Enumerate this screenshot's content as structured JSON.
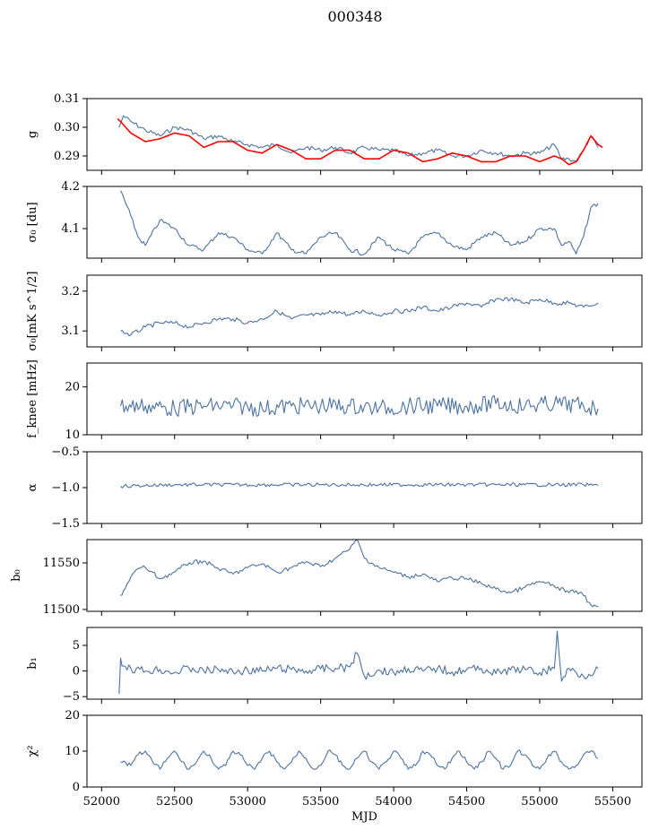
{
  "figure": {
    "title": "000348"
  },
  "chart_data": [
    {
      "type": "line",
      "id": "g",
      "ylabel": "g",
      "ylim": [
        0.285,
        0.31
      ],
      "yticks": [
        0.29,
        0.3,
        0.31
      ],
      "ytick_labels": [
        "0.29",
        "0.30",
        "0.31"
      ],
      "xlim": [
        51900,
        55700
      ],
      "series": [
        {
          "role": "data",
          "color": "#4c72a0",
          "x": [
            52120,
            52150,
            52200,
            52300,
            52400,
            52500,
            52600,
            52700,
            52800,
            52900,
            53000,
            53100,
            53200,
            53300,
            53400,
            53500,
            53600,
            53700,
            53800,
            53900,
            54000,
            54100,
            54200,
            54300,
            54400,
            54500,
            54600,
            54700,
            54800,
            54900,
            55000,
            55100,
            55150,
            55200,
            55250,
            55300,
            55350,
            55400
          ],
          "y": [
            0.3,
            0.304,
            0.302,
            0.299,
            0.297,
            0.3,
            0.299,
            0.296,
            0.297,
            0.295,
            0.294,
            0.293,
            0.294,
            0.291,
            0.293,
            0.292,
            0.293,
            0.291,
            0.293,
            0.292,
            0.292,
            0.29,
            0.291,
            0.292,
            0.29,
            0.29,
            0.292,
            0.291,
            0.29,
            0.291,
            0.291,
            0.294,
            0.289,
            0.289,
            0.288,
            0.292,
            0.297,
            0.293
          ]
        },
        {
          "role": "model",
          "color": "#ff0000",
          "x": [
            52110,
            52130,
            52200,
            52300,
            52400,
            52500,
            52600,
            52700,
            52800,
            52900,
            53000,
            53100,
            53200,
            53300,
            53400,
            53500,
            53600,
            53700,
            53800,
            53900,
            54000,
            54100,
            54200,
            54300,
            54400,
            54500,
            54600,
            54700,
            54800,
            54900,
            55000,
            55100,
            55150,
            55200,
            55250,
            55300,
            55350,
            55400,
            55430
          ],
          "y": [
            0.303,
            0.302,
            0.298,
            0.295,
            0.296,
            0.298,
            0.297,
            0.293,
            0.295,
            0.295,
            0.292,
            0.291,
            0.294,
            0.292,
            0.289,
            0.289,
            0.292,
            0.292,
            0.289,
            0.289,
            0.292,
            0.291,
            0.288,
            0.289,
            0.291,
            0.29,
            0.288,
            0.288,
            0.29,
            0.29,
            0.288,
            0.29,
            0.289,
            0.287,
            0.288,
            0.292,
            0.297,
            0.294,
            0.293
          ]
        }
      ]
    },
    {
      "type": "line",
      "id": "sigma0-du",
      "ylabel": "σ₀ [du]",
      "ylim": [
        4.03,
        4.2
      ],
      "yticks": [
        4.1,
        4.2
      ],
      "ytick_labels": [
        "4.1",
        "4.2"
      ],
      "xlim": [
        51900,
        55700
      ],
      "series": [
        {
          "color": "#4c72a0",
          "x": [
            52130,
            52200,
            52250,
            52300,
            52400,
            52500,
            52600,
            52700,
            52800,
            52900,
            53000,
            53100,
            53200,
            53300,
            53400,
            53500,
            53600,
            53700,
            53800,
            53900,
            54000,
            54100,
            54200,
            54300,
            54400,
            54500,
            54600,
            54700,
            54800,
            54900,
            55000,
            55100,
            55150,
            55200,
            55250,
            55300,
            55350,
            55400
          ],
          "y": [
            4.19,
            4.13,
            4.08,
            4.06,
            4.12,
            4.1,
            4.06,
            4.05,
            4.09,
            4.08,
            4.05,
            4.04,
            4.09,
            4.05,
            4.04,
            4.08,
            4.09,
            4.05,
            4.04,
            4.08,
            4.05,
            4.04,
            4.08,
            4.09,
            4.06,
            4.05,
            4.08,
            4.09,
            4.06,
            4.07,
            4.1,
            4.1,
            4.06,
            4.07,
            4.04,
            4.08,
            4.15,
            4.16
          ]
        }
      ]
    },
    {
      "type": "line",
      "id": "sigma0-mk",
      "ylabel": "σ₀[mK s^1/2]",
      "ylim": [
        3.06,
        3.24
      ],
      "yticks": [
        3.1,
        3.2
      ],
      "ytick_labels": [
        "3.1",
        "3.2"
      ],
      "xlim": [
        51900,
        55700
      ],
      "series": [
        {
          "color": "#4c72a0",
          "x": [
            52130,
            52200,
            52300,
            52400,
            52500,
            52600,
            52700,
            52800,
            52900,
            53000,
            53100,
            53200,
            53300,
            53400,
            53500,
            53600,
            53700,
            53800,
            53900,
            54000,
            54100,
            54200,
            54300,
            54400,
            54500,
            54600,
            54700,
            54800,
            54900,
            55000,
            55100,
            55200,
            55300,
            55400
          ],
          "y": [
            3.1,
            3.09,
            3.11,
            3.12,
            3.12,
            3.11,
            3.12,
            3.13,
            3.13,
            3.12,
            3.13,
            3.15,
            3.13,
            3.14,
            3.14,
            3.15,
            3.14,
            3.15,
            3.14,
            3.15,
            3.15,
            3.16,
            3.15,
            3.16,
            3.17,
            3.16,
            3.18,
            3.18,
            3.17,
            3.18,
            3.17,
            3.17,
            3.16,
            3.17
          ]
        }
      ]
    },
    {
      "type": "line",
      "id": "fknee",
      "ylabel": "f_knee [mHz]",
      "ylim": [
        10,
        25
      ],
      "yticks": [
        10,
        20
      ],
      "ytick_labels": [
        "10",
        "20"
      ],
      "xlim": [
        51900,
        55700
      ],
      "series": [
        {
          "color": "#4c72a0",
          "x": [
            52130,
            52300,
            52500,
            52700,
            52900,
            53100,
            53300,
            53500,
            53700,
            53900,
            54100,
            54300,
            54500,
            54700,
            54900,
            55100,
            55300,
            55400
          ],
          "y": [
            16,
            16,
            15.5,
            16,
            16,
            15.5,
            16,
            16,
            16,
            15.5,
            16,
            16,
            16,
            16.5,
            16,
            16.5,
            16,
            15.5
          ]
        }
      ]
    },
    {
      "type": "line",
      "id": "alpha",
      "ylabel": "α",
      "ylim": [
        -1.5,
        -0.5
      ],
      "yticks": [
        -1.5,
        -1.0,
        -0.5
      ],
      "ytick_labels": [
        "−1.5",
        "−1.0",
        "−0.5"
      ],
      "xlim": [
        51900,
        55700
      ],
      "series": [
        {
          "color": "#4c72a0",
          "x": [
            52130,
            52300,
            52500,
            52700,
            52900,
            53100,
            53300,
            53500,
            53700,
            53900,
            54100,
            54300,
            54500,
            54700,
            54900,
            55100,
            55300,
            55400
          ],
          "y": [
            -0.98,
            -0.97,
            -0.96,
            -0.96,
            -0.96,
            -0.96,
            -0.96,
            -0.96,
            -0.96,
            -0.96,
            -0.96,
            -0.96,
            -0.96,
            -0.96,
            -0.96,
            -0.96,
            -0.96,
            -0.97
          ]
        }
      ]
    },
    {
      "type": "line",
      "id": "b0",
      "ylabel": "b₀",
      "ylim": [
        11498,
        11575
      ],
      "yticks": [
        11500,
        11550
      ],
      "ytick_labels": [
        "11500",
        "11550"
      ],
      "xlim": [
        51900,
        55700
      ],
      "series": [
        {
          "color": "#4c72a0",
          "x": [
            52130,
            52150,
            52200,
            52250,
            52300,
            52400,
            52500,
            52600,
            52700,
            52800,
            52900,
            53000,
            53100,
            53200,
            53300,
            53400,
            53500,
            53600,
            53700,
            53750,
            53800,
            53900,
            54000,
            54100,
            54200,
            54300,
            54400,
            54500,
            54600,
            54700,
            54800,
            54900,
            55000,
            55100,
            55200,
            55250,
            55300,
            55350,
            55400
          ],
          "y": [
            11515,
            11520,
            11535,
            11544,
            11545,
            11533,
            11540,
            11550,
            11552,
            11544,
            11538,
            11545,
            11549,
            11540,
            11545,
            11551,
            11546,
            11555,
            11565,
            11575,
            11555,
            11545,
            11540,
            11535,
            11538,
            11530,
            11534,
            11533,
            11528,
            11522,
            11518,
            11524,
            11530,
            11525,
            11518,
            11520,
            11515,
            11505,
            11503
          ]
        }
      ]
    },
    {
      "type": "line",
      "id": "b1",
      "ylabel": "b₁",
      "ylim": [
        -5.5,
        8.5
      ],
      "yticks": [
        -5,
        0,
        5
      ],
      "ytick_labels": [
        "−5",
        "0",
        "5"
      ],
      "xlim": [
        51900,
        55700
      ],
      "series": [
        {
          "color": "#4c72a0",
          "x": [
            52120,
            52130,
            52150,
            52200,
            52300,
            52400,
            52500,
            52600,
            52700,
            52800,
            52900,
            53000,
            53100,
            53200,
            53300,
            53400,
            53500,
            53600,
            53700,
            53750,
            53800,
            53900,
            54000,
            54100,
            54200,
            54300,
            54400,
            54500,
            54600,
            54700,
            54800,
            54900,
            55000,
            55100,
            55120,
            55150,
            55200,
            55300,
            55400
          ],
          "y": [
            -4.5,
            2.5,
            1,
            0.5,
            0,
            0.3,
            -0.3,
            0.5,
            0,
            0.3,
            -0.2,
            0.2,
            0,
            0.5,
            0.3,
            0,
            0.4,
            0.5,
            0.8,
            3.5,
            -1,
            0.2,
            -0.3,
            0.5,
            0,
            0.5,
            -0.2,
            0.3,
            0.5,
            -0.5,
            0.2,
            0.3,
            -0.3,
            0.5,
            7.8,
            -2,
            0.5,
            -1,
            0.5
          ]
        }
      ]
    },
    {
      "type": "line",
      "id": "chi2",
      "ylabel": "χ²",
      "xlabel": "MJD",
      "ylim": [
        0,
        20
      ],
      "yticks": [
        0,
        10,
        20
      ],
      "ytick_labels": [
        "0",
        "10",
        "20"
      ],
      "xlim": [
        51900,
        55700
      ],
      "xticks": [
        52000,
        52500,
        53000,
        53500,
        54000,
        54500,
        55000,
        55500
      ],
      "xtick_labels": [
        "52000",
        "52500",
        "53000",
        "53500",
        "54000",
        "54500",
        "55000",
        "55500"
      ],
      "series": [
        {
          "color": "#4c72a0",
          "x": [
            52130,
            52200,
            52250,
            52300,
            52350,
            52400,
            52450,
            52500,
            52550,
            52600,
            52650,
            52700,
            52750,
            52800,
            52850,
            52900,
            52950,
            53000,
            53050,
            53100,
            53150,
            53200,
            53250,
            53300,
            53350,
            53400,
            53450,
            53500,
            53550,
            53600,
            53650,
            53700,
            53750,
            53800,
            53850,
            53900,
            53950,
            54000,
            54050,
            54100,
            54150,
            54200,
            54250,
            54300,
            54350,
            54400,
            54450,
            54500,
            54550,
            54600,
            54650,
            54700,
            54750,
            54800,
            54850,
            54900,
            54950,
            55000,
            55050,
            55100,
            55150,
            55200,
            55250,
            55300,
            55350,
            55400
          ],
          "y": [
            7,
            6,
            9,
            10,
            7,
            5,
            8,
            10,
            7,
            5,
            7,
            10,
            8,
            5,
            6,
            10,
            9,
            6,
            5,
            8,
            10,
            7,
            5,
            7,
            10,
            8,
            5,
            6,
            10,
            9,
            6,
            5,
            8,
            10,
            7,
            5,
            7,
            10,
            8,
            5,
            6,
            10,
            9,
            6,
            5,
            8,
            10,
            7,
            5,
            7,
            10,
            8,
            5,
            6,
            10,
            9,
            6,
            5,
            8,
            10,
            7,
            5,
            6,
            9,
            10,
            8
          ]
        }
      ]
    }
  ]
}
